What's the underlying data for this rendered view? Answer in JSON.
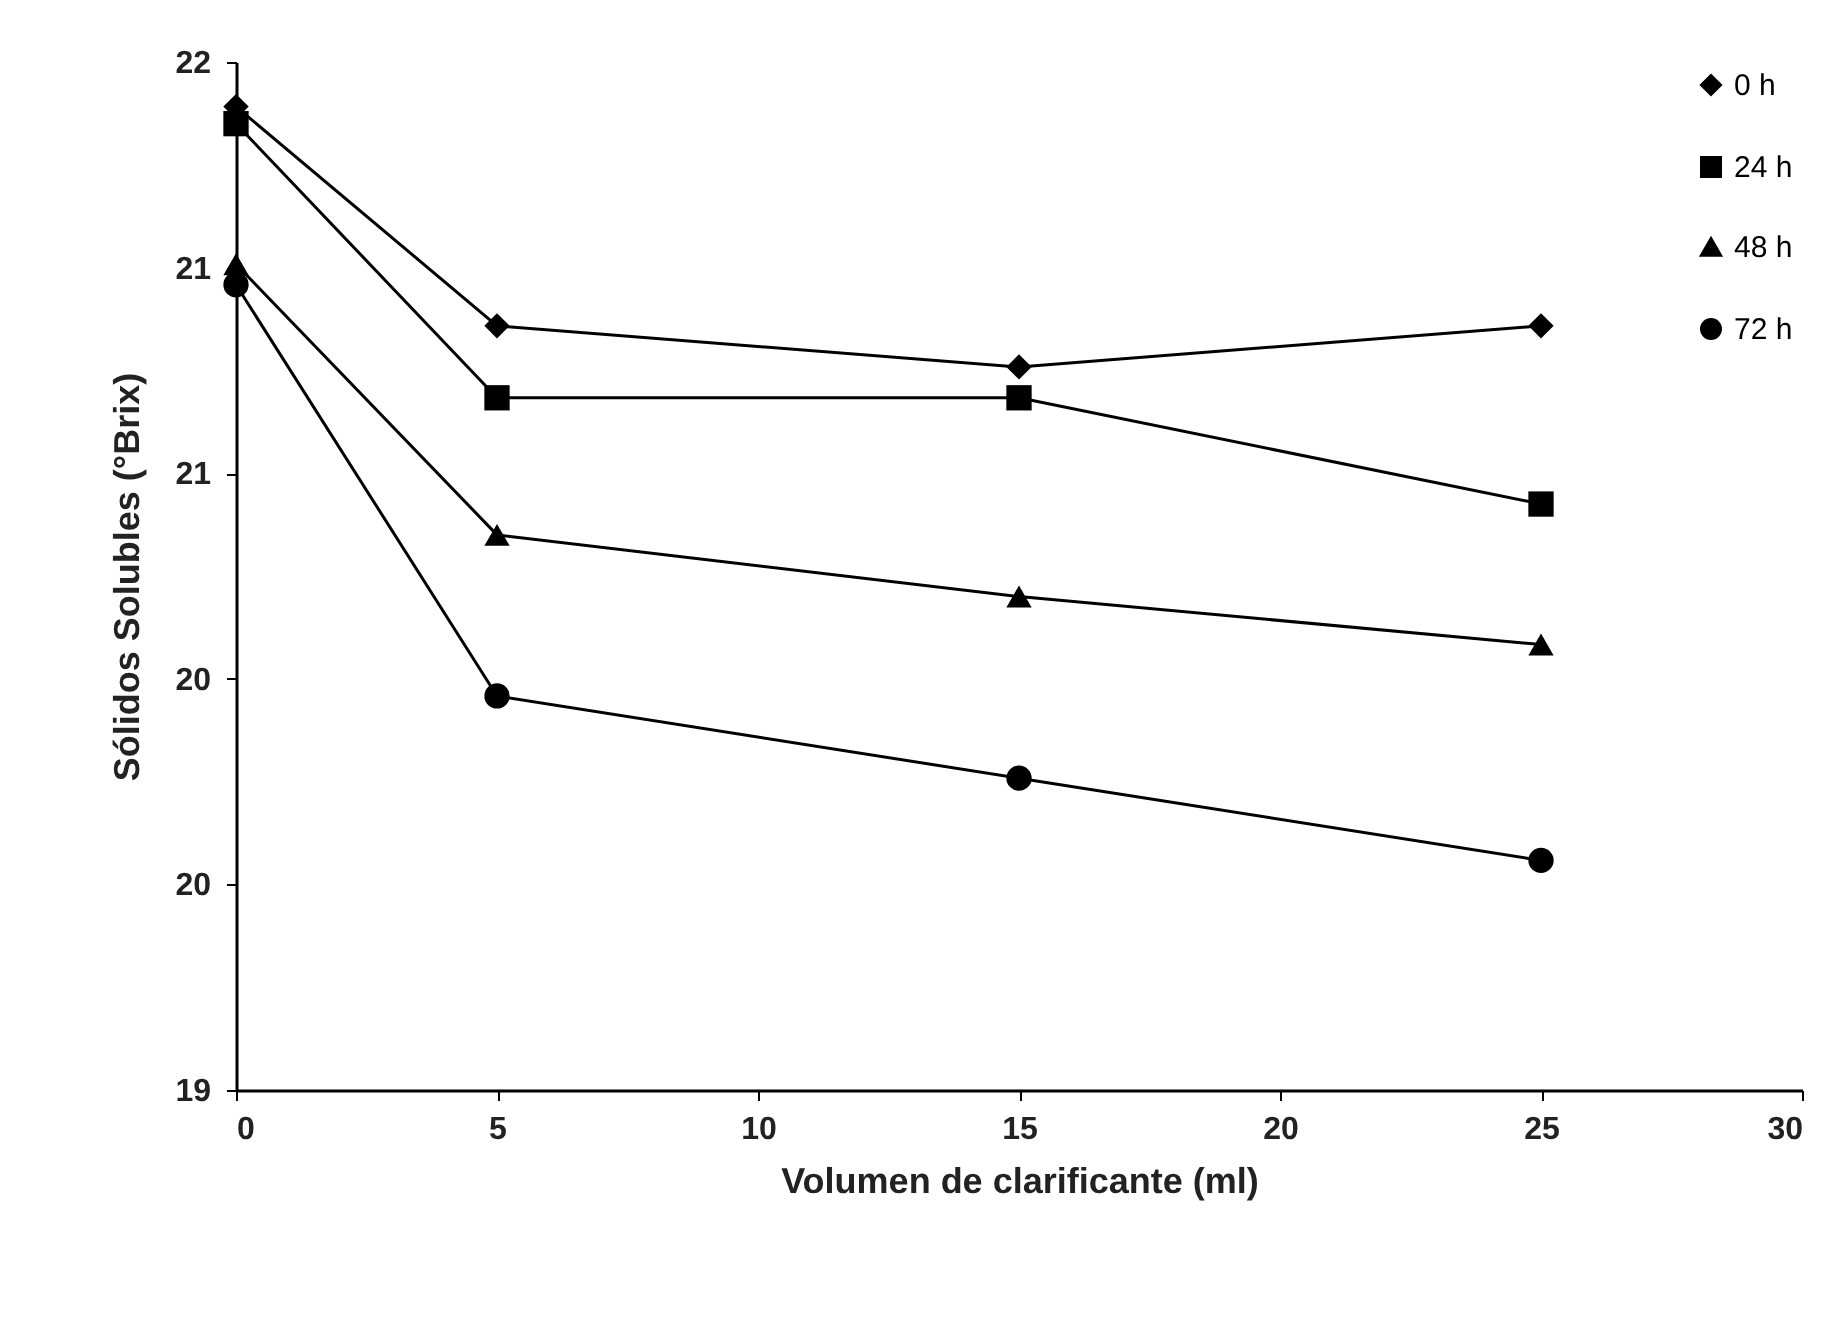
{
  "chart_data": {
    "type": "line",
    "xlabel": "Volumen de clarificante (ml)",
    "ylabel": "Sólidos Solubles (°Brix)",
    "x": [
      0,
      5,
      15,
      25
    ],
    "series": [
      {
        "name": "0 h",
        "color": "#000000",
        "marker": "diamond",
        "values": [
          21.87,
          21.23,
          21.11,
          21.23
        ]
      },
      {
        "name": "24 h",
        "color": "#000000",
        "marker": "square",
        "values": [
          21.82,
          21.02,
          21.02,
          20.71
        ]
      },
      {
        "name": "48 h",
        "color": "#000000",
        "marker": "triangle",
        "values": [
          21.41,
          20.62,
          20.44,
          20.3
        ]
      },
      {
        "name": "72 h",
        "color": "#000000",
        "marker": "circle",
        "values": [
          21.35,
          20.15,
          19.91,
          19.67
        ]
      }
    ],
    "xlim": [
      0,
      30
    ],
    "xticks": [
      0,
      5,
      10,
      15,
      20,
      25,
      30
    ],
    "ylim": [
      19,
      22
    ],
    "yticks": [
      19,
      {
        "value": 19.6,
        "label": "20"
      },
      {
        "value": 20.2,
        "label": "20"
      },
      {
        "value": 20.8,
        "label": "21"
      },
      {
        "value": 21.4,
        "label": "21"
      },
      22
    ],
    "grid": false,
    "legend": "top right",
    "line_style": "solid"
  }
}
